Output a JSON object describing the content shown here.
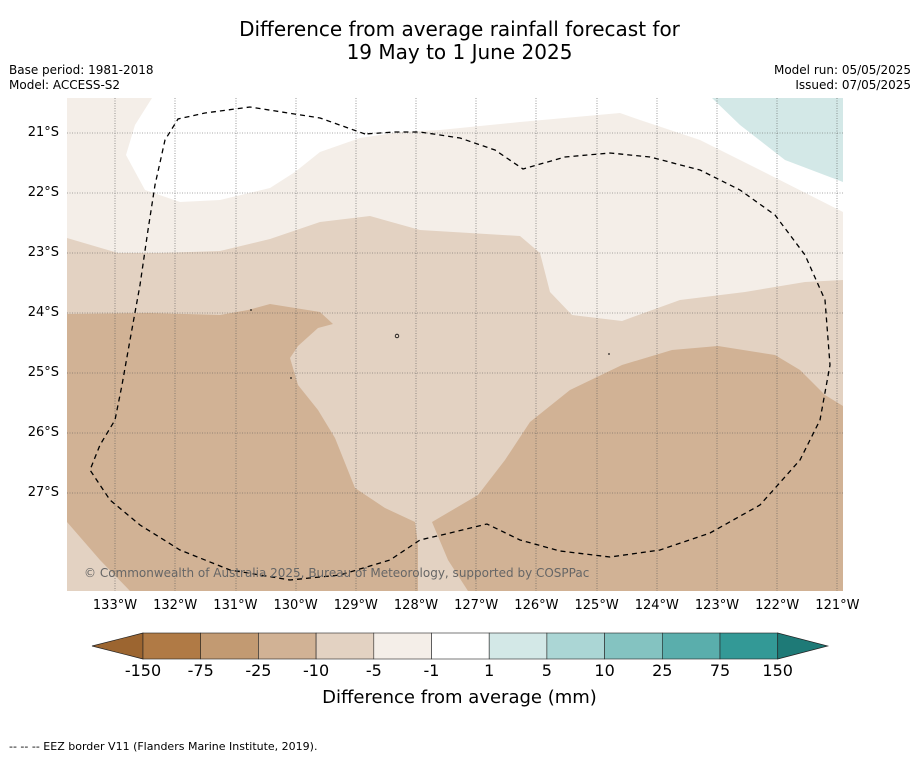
{
  "title_line1": "Difference from average rainfall forecast for",
  "title_line2": "19 May to 1 June 2025",
  "base_period": "Base period: 1981-2018",
  "model": "Model: ACCESS-S2",
  "model_run": "Model run: 05/05/2025",
  "issued": "Issued: 07/05/2025",
  "copyright": "© Commonwealth of Australia 2025, Bureau of Meteorology, supported by COSPPac",
  "lat_labels": [
    "21°S",
    "22°S",
    "23°S",
    "24°S",
    "25°S",
    "26°S",
    "27°S"
  ],
  "lon_labels": [
    "133°W",
    "132°W",
    "131°W",
    "130°W",
    "129°W",
    "128°W",
    "127°W",
    "126°W",
    "125°W",
    "124°W",
    "123°W",
    "122°W",
    "121°W"
  ],
  "colorbar": {
    "ticks": [
      "-150",
      "-75",
      "-25",
      "-10",
      "-5",
      "-1",
      "1",
      "5",
      "10",
      "25",
      "75",
      "150"
    ],
    "colors": [
      "#9c6530",
      "#b07a45",
      "#c29a72",
      "#d1b295",
      "#e3d2c2",
      "#f4eee8",
      "#ffffff",
      "#d3e8e7",
      "#abd6d5",
      "#84c3c1",
      "#5aaeac",
      "#339996",
      "#1e7a77"
    ],
    "label": "Difference from average (mm)"
  },
  "footer": "--  --  -- EEZ border V11 (Flanders Marine Institute, 2019)."
}
